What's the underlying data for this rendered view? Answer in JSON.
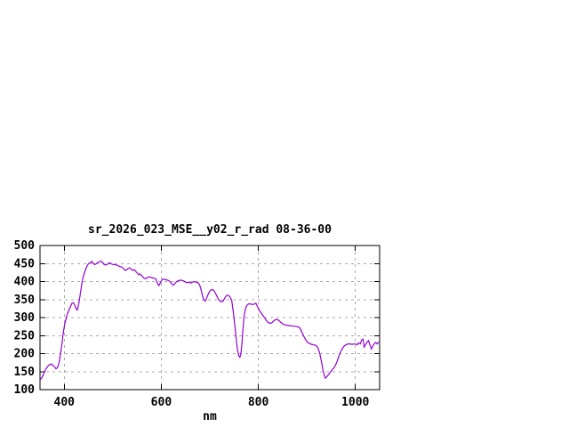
{
  "window": {
    "background": "#ffffff"
  },
  "colors": {
    "line": "#9400D3",
    "grid": "#a8a8a8",
    "axis": "#000000",
    "text": "#000000",
    "background": "#ffffff"
  },
  "chart_data": {
    "type": "line",
    "title": "sr_2026_023_MSE__y02_r_rad 08-36-00",
    "xlabel": "nm",
    "ylabel": "",
    "xlim": [
      350,
      1050
    ],
    "ylim": [
      100,
      500
    ],
    "x_ticks": [
      400,
      600,
      800,
      1000
    ],
    "y_ticks": [
      100,
      150,
      200,
      250,
      300,
      350,
      400,
      450,
      500
    ],
    "grid": true,
    "legend_position": "none",
    "series": [
      {
        "name": "sr_2026_023_MSE__y02_r_rad 08-36-00",
        "color": "#9400D3",
        "points": [
          [
            350,
            127
          ],
          [
            353,
            131
          ],
          [
            356,
            139
          ],
          [
            359,
            149
          ],
          [
            362,
            157
          ],
          [
            365,
            163
          ],
          [
            368,
            168
          ],
          [
            371,
            170
          ],
          [
            374,
            171
          ],
          [
            377,
            167
          ],
          [
            380,
            163
          ],
          [
            383,
            158
          ],
          [
            386,
            161
          ],
          [
            389,
            173
          ],
          [
            392,
            196
          ],
          [
            395,
            226
          ],
          [
            398,
            258
          ],
          [
            401,
            282
          ],
          [
            404,
            299
          ],
          [
            407,
            312
          ],
          [
            410,
            322
          ],
          [
            413,
            331
          ],
          [
            416,
            340
          ],
          [
            419,
            341
          ],
          [
            422,
            333
          ],
          [
            425,
            323
          ],
          [
            427,
            321
          ],
          [
            430,
            340
          ],
          [
            433,
            365
          ],
          [
            436,
            392
          ],
          [
            439,
            413
          ],
          [
            442,
            426
          ],
          [
            445,
            437
          ],
          [
            448,
            446
          ],
          [
            451,
            451
          ],
          [
            454,
            453
          ],
          [
            457,
            456
          ],
          [
            460,
            450
          ],
          [
            463,
            447
          ],
          [
            466,
            450
          ],
          [
            469,
            453
          ],
          [
            472,
            454
          ],
          [
            475,
            457
          ],
          [
            478,
            455
          ],
          [
            481,
            449
          ],
          [
            484,
            446
          ],
          [
            487,
            447
          ],
          [
            490,
            449
          ],
          [
            493,
            452
          ],
          [
            496,
            450
          ],
          [
            499,
            448
          ],
          [
            502,
            447
          ],
          [
            505,
            447
          ],
          [
            508,
            446
          ],
          [
            511,
            444
          ],
          [
            514,
            442
          ],
          [
            517,
            441
          ],
          [
            520,
            439
          ],
          [
            523,
            434
          ],
          [
            526,
            431
          ],
          [
            529,
            433
          ],
          [
            532,
            437
          ],
          [
            535,
            438
          ],
          [
            538,
            434
          ],
          [
            541,
            431
          ],
          [
            544,
            433
          ],
          [
            547,
            429
          ],
          [
            550,
            424
          ],
          [
            553,
            419
          ],
          [
            556,
            421
          ],
          [
            559,
            417
          ],
          [
            562,
            413
          ],
          [
            565,
            409
          ],
          [
            568,
            408
          ],
          [
            571,
            411
          ],
          [
            574,
            413
          ],
          [
            577,
            412
          ],
          [
            580,
            411
          ],
          [
            583,
            410
          ],
          [
            586,
            409
          ],
          [
            589,
            407
          ],
          [
            592,
            394
          ],
          [
            595,
            389
          ],
          [
            598,
            396
          ],
          [
            601,
            404
          ],
          [
            604,
            407
          ],
          [
            607,
            406
          ],
          [
            610,
            405
          ],
          [
            613,
            404
          ],
          [
            616,
            402
          ],
          [
            619,
            398
          ],
          [
            622,
            393
          ],
          [
            625,
            390
          ],
          [
            628,
            394
          ],
          [
            631,
            399
          ],
          [
            634,
            402
          ],
          [
            637,
            403
          ],
          [
            640,
            404
          ],
          [
            643,
            403
          ],
          [
            646,
            402
          ],
          [
            649,
            399
          ],
          [
            652,
            397
          ],
          [
            655,
            398
          ],
          [
            658,
            397
          ],
          [
            661,
            396
          ],
          [
            664,
            398
          ],
          [
            667,
            400
          ],
          [
            670,
            399
          ],
          [
            673,
            398
          ],
          [
            676,
            396
          ],
          [
            679,
            391
          ],
          [
            682,
            377
          ],
          [
            685,
            360
          ],
          [
            688,
            348
          ],
          [
            691,
            346
          ],
          [
            694,
            356
          ],
          [
            697,
            366
          ],
          [
            700,
            373
          ],
          [
            703,
            377
          ],
          [
            706,
            378
          ],
          [
            709,
            374
          ],
          [
            712,
            367
          ],
          [
            715,
            358
          ],
          [
            718,
            350
          ],
          [
            721,
            346
          ],
          [
            724,
            344
          ],
          [
            727,
            345
          ],
          [
            730,
            352
          ],
          [
            733,
            359
          ],
          [
            736,
            362
          ],
          [
            739,
            361
          ],
          [
            742,
            356
          ],
          [
            745,
            348
          ],
          [
            748,
            320
          ],
          [
            751,
            285
          ],
          [
            754,
            245
          ],
          [
            757,
            210
          ],
          [
            760,
            193
          ],
          [
            762,
            190
          ],
          [
            764,
            198
          ],
          [
            766,
            225
          ],
          [
            768,
            262
          ],
          [
            770,
            295
          ],
          [
            772,
            315
          ],
          [
            774,
            327
          ],
          [
            776,
            333
          ],
          [
            778,
            336
          ],
          [
            780,
            338
          ],
          [
            783,
            338
          ],
          [
            786,
            337
          ],
          [
            789,
            336
          ],
          [
            792,
            338
          ],
          [
            795,
            340
          ],
          [
            798,
            331
          ],
          [
            801,
            323
          ],
          [
            804,
            316
          ],
          [
            807,
            310
          ],
          [
            810,
            305
          ],
          [
            813,
            299
          ],
          [
            816,
            293
          ],
          [
            819,
            288
          ],
          [
            822,
            285
          ],
          [
            825,
            284
          ],
          [
            828,
            286
          ],
          [
            831,
            290
          ],
          [
            834,
            293
          ],
          [
            837,
            295
          ],
          [
            840,
            294
          ],
          [
            843,
            291
          ],
          [
            846,
            287
          ],
          [
            849,
            284
          ],
          [
            852,
            281
          ],
          [
            855,
            280
          ],
          [
            858,
            279
          ],
          [
            861,
            278
          ],
          [
            864,
            278
          ],
          [
            867,
            277
          ],
          [
            870,
            277
          ],
          [
            873,
            276
          ],
          [
            876,
            276
          ],
          [
            879,
            275
          ],
          [
            882,
            274
          ],
          [
            885,
            272
          ],
          [
            888,
            265
          ],
          [
            891,
            256
          ],
          [
            894,
            247
          ],
          [
            897,
            240
          ],
          [
            900,
            234
          ],
          [
            903,
            230
          ],
          [
            906,
            228
          ],
          [
            909,
            226
          ],
          [
            912,
            225
          ],
          [
            915,
            224
          ],
          [
            918,
            223
          ],
          [
            921,
            220
          ],
          [
            924,
            212
          ],
          [
            927,
            198
          ],
          [
            930,
            178
          ],
          [
            933,
            156
          ],
          [
            936,
            139
          ],
          [
            938,
            132
          ],
          [
            940,
            134
          ],
          [
            942,
            137
          ],
          [
            944,
            141
          ],
          [
            947,
            146
          ],
          [
            950,
            151
          ],
          [
            953,
            156
          ],
          [
            956,
            161
          ],
          [
            959,
            168
          ],
          [
            962,
            177
          ],
          [
            965,
            189
          ],
          [
            968,
            200
          ],
          [
            971,
            209
          ],
          [
            974,
            216
          ],
          [
            977,
            221
          ],
          [
            980,
            224
          ],
          [
            983,
            226
          ],
          [
            986,
            227
          ],
          [
            989,
            227
          ],
          [
            992,
            226
          ],
          [
            995,
            226
          ],
          [
            998,
            227
          ],
          [
            1001,
            226
          ],
          [
            1004,
            225
          ],
          [
            1007,
            230
          ],
          [
            1010,
            227
          ],
          [
            1013,
            238
          ],
          [
            1016,
            240
          ],
          [
            1018,
            218
          ],
          [
            1021,
            225
          ],
          [
            1024,
            232
          ],
          [
            1027,
            236
          ],
          [
            1030,
            224
          ],
          [
            1033,
            213
          ],
          [
            1036,
            221
          ],
          [
            1039,
            228
          ],
          [
            1042,
            231
          ],
          [
            1045,
            227
          ],
          [
            1048,
            232
          ]
        ]
      }
    ]
  }
}
